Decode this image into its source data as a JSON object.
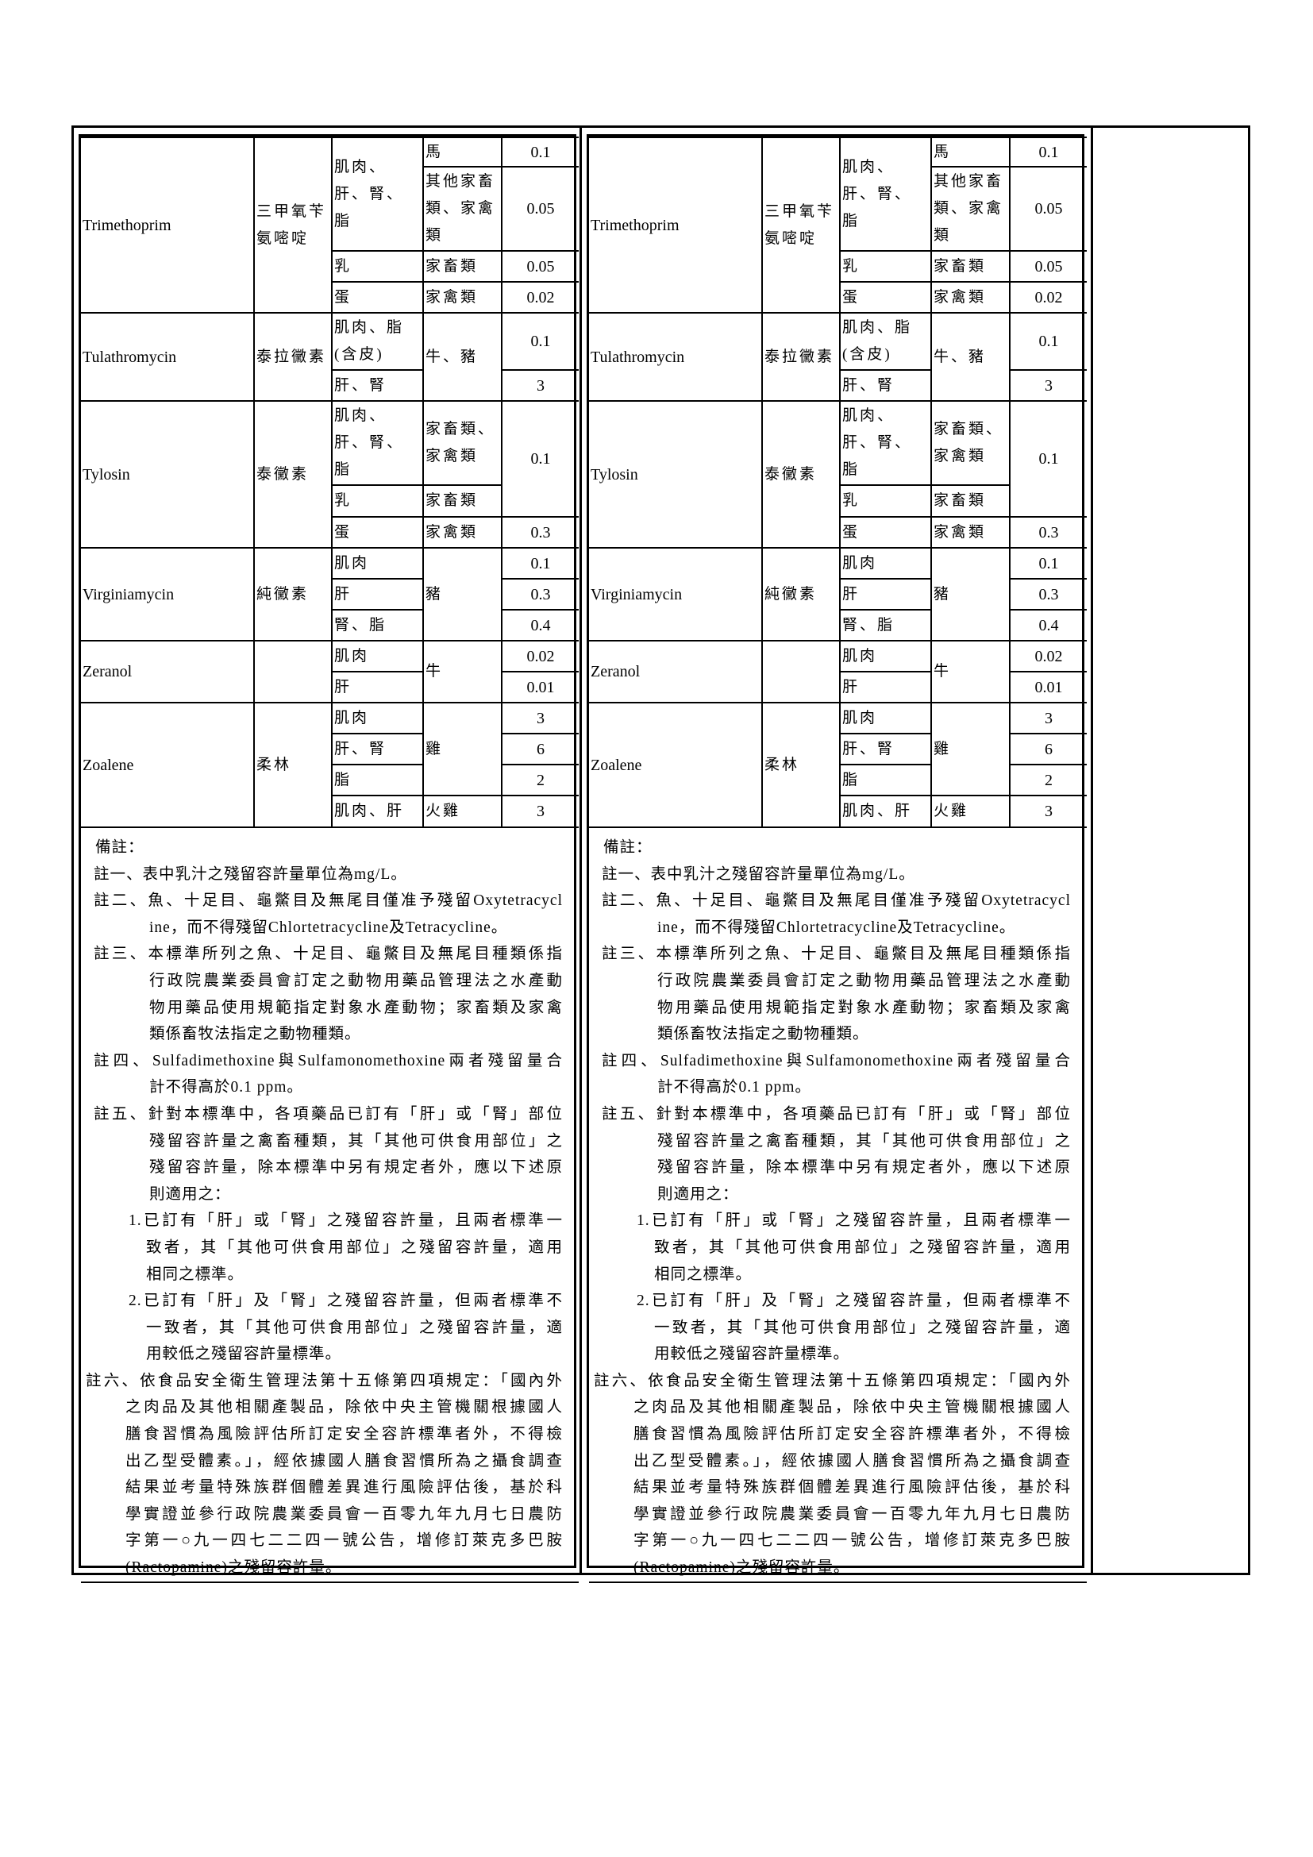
{
  "table": {
    "drugs": [
      {
        "name_en": "Trimethoprim",
        "name_zh": "三甲氧苄氨嘧啶",
        "rows": [
          {
            "part": "肌肉、肝、腎、脂",
            "part_span": 2,
            "animal": "馬",
            "value": "0.1"
          },
          {
            "animal": "其他家畜類、家禽類",
            "value": "0.05"
          },
          {
            "part": "乳",
            "animal": "家畜類",
            "value": "0.05"
          },
          {
            "part": "蛋",
            "animal": "家禽類",
            "value": "0.02"
          }
        ]
      },
      {
        "name_en": "Tulathromycin",
        "name_zh": "泰拉黴素",
        "rows": [
          {
            "part": "肌肉、脂(含皮)",
            "animal": "牛、豬",
            "animal_span": 2,
            "value": "0.1"
          },
          {
            "part": "肝、腎",
            "value": "3"
          }
        ]
      },
      {
        "name_en": "Tylosin",
        "name_zh": "泰黴素",
        "rows": [
          {
            "part": "肌肉、肝、腎、脂",
            "animal": "家畜類、家禽類",
            "value": "0.1",
            "value_span": 2
          },
          {
            "part": "乳",
            "animal": "家畜類"
          },
          {
            "part": "蛋",
            "animal": "家禽類",
            "value": "0.3"
          }
        ]
      },
      {
        "name_en": "Virginiamycin",
        "name_zh": "純黴素",
        "rows": [
          {
            "part": "肌肉",
            "animal": "豬",
            "animal_span": 3,
            "value": "0.1"
          },
          {
            "part": "肝",
            "value": "0.3"
          },
          {
            "part": "腎、脂",
            "value": "0.4"
          }
        ]
      },
      {
        "name_en": "Zeranol",
        "name_zh": "",
        "rows": [
          {
            "part": "肌肉",
            "animal": "牛",
            "animal_span": 2,
            "value": "0.02"
          },
          {
            "part": "肝",
            "value": "0.01"
          }
        ]
      },
      {
        "name_en": "Zoalene",
        "name_zh": "柔林",
        "rows": [
          {
            "part": "肌肉",
            "animal": "雞",
            "animal_span": 3,
            "value": "3"
          },
          {
            "part": "肝、腎",
            "value": "6"
          },
          {
            "part": "脂",
            "value": "2"
          },
          {
            "part": "肌肉、肝",
            "animal": "火雞",
            "value": "3"
          }
        ]
      }
    ]
  },
  "notes": {
    "heading": "備註：",
    "items": [
      {
        "label": "註一、",
        "lines": [
          "表中乳汁之殘留容許量單位為mg/L。"
        ]
      },
      {
        "label": "註二、",
        "lines": [
          "魚、十足目、龜鱉目及無尾目僅准予殘留Oxytetracycl",
          "ine，而不得殘留Chlortetracycline及Tetracycline。"
        ]
      },
      {
        "label": "註三、",
        "lines": [
          "本標準所列之魚、十足目、龜鱉目及無尾目種類係指",
          "行政院農業委員會訂定之動物用藥品管理法之水產動",
          "物用藥品使用規範指定對象水產動物；家畜類及家禽",
          "類係畜牧法指定之動物種類。"
        ]
      },
      {
        "label": "註四、",
        "lines": [
          "Sulfadimethoxine與Sulfamonomethoxine兩者殘留量合",
          "計不得高於0.1 ppm。"
        ]
      },
      {
        "label": "註五、",
        "lines": [
          "針對本標準中，各項藥品已訂有「肝」或「腎」部位",
          "殘留容許量之禽畜種類，其「其他可供食用部位」之",
          "殘留容許量，除本標準中另有規定者外，應以下述原",
          "則適用之："
        ],
        "subitems": [
          {
            "label": "1.",
            "lines": [
              "已訂有「肝」或「腎」之殘留容許量，且兩者標準一",
              "致者，其「其他可供食用部位」之殘留容許量，適用",
              "相同之標準。"
            ]
          },
          {
            "label": "2.",
            "lines": [
              "已訂有「肝」及「腎」之殘留容許量，但兩者標準不",
              "一致者，其「其他可供食用部位」之殘留容許量，適",
              "用較低之殘留容許量標準。"
            ]
          }
        ]
      },
      {
        "label": "註六、",
        "lines": [
          "依食品安全衛生管理法第十五條第四項規定：「國內外",
          "之肉品及其他相關產製品，除依中央主管機關根據國人",
          "膳食習慣為風險評估所訂定安全容許標準者外，不得檢",
          "出乙型受體素。」，經依據國人膳食習慣所為之攝食調查",
          "結果並考量特殊族群個體差異進行風險評估後，基於科",
          "學實證並參行政院農業委員會一百零九年九月七日農防",
          "字第一○九一四七二二四一號公告，增修訂萊克多巴胺",
          "(Ractopamine)之殘留容許量。"
        ]
      }
    ]
  }
}
